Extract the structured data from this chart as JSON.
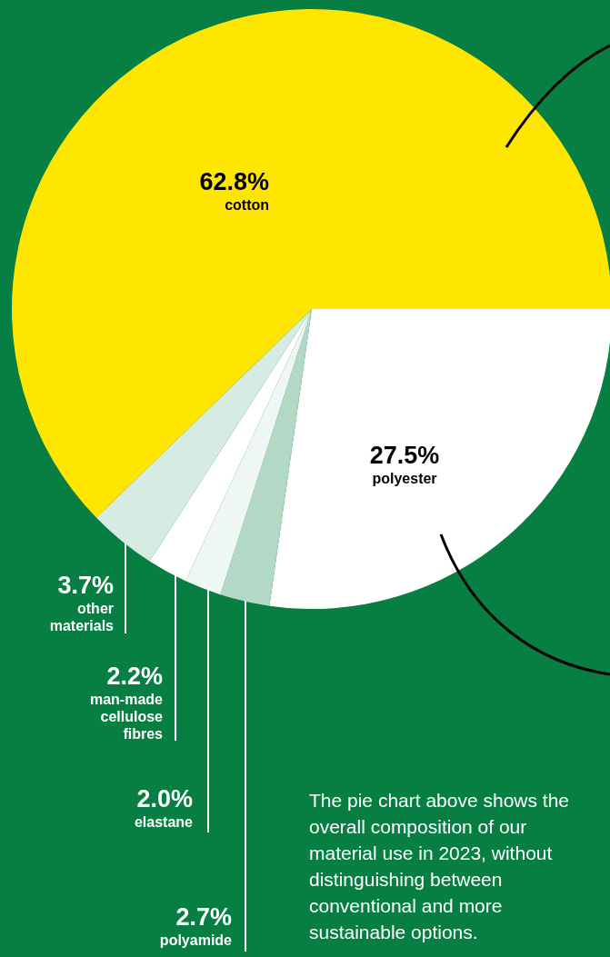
{
  "chart_data": {
    "type": "pie",
    "categories": [
      "polyester",
      "polyamide",
      "elastane",
      "man-made cellulose fibres",
      "other materials",
      "cotton"
    ],
    "values": [
      27.5,
      2.7,
      2.0,
      2.2,
      3.7,
      62.8
    ],
    "colors": [
      "#ffffff",
      "#b2d9c6",
      "#eef7f3",
      "#ffffff",
      "#d6ebe2",
      "#ffe600"
    ],
    "value_labels": [
      "27.5%",
      "2.7%",
      "2.0%",
      "2.2%",
      "3.7%",
      "62.8%"
    ],
    "annotations": [
      "The pie chart above shows the overall composition of our material use in 2023, without distinguishing between conventional and more sustainable options."
    ]
  }
}
